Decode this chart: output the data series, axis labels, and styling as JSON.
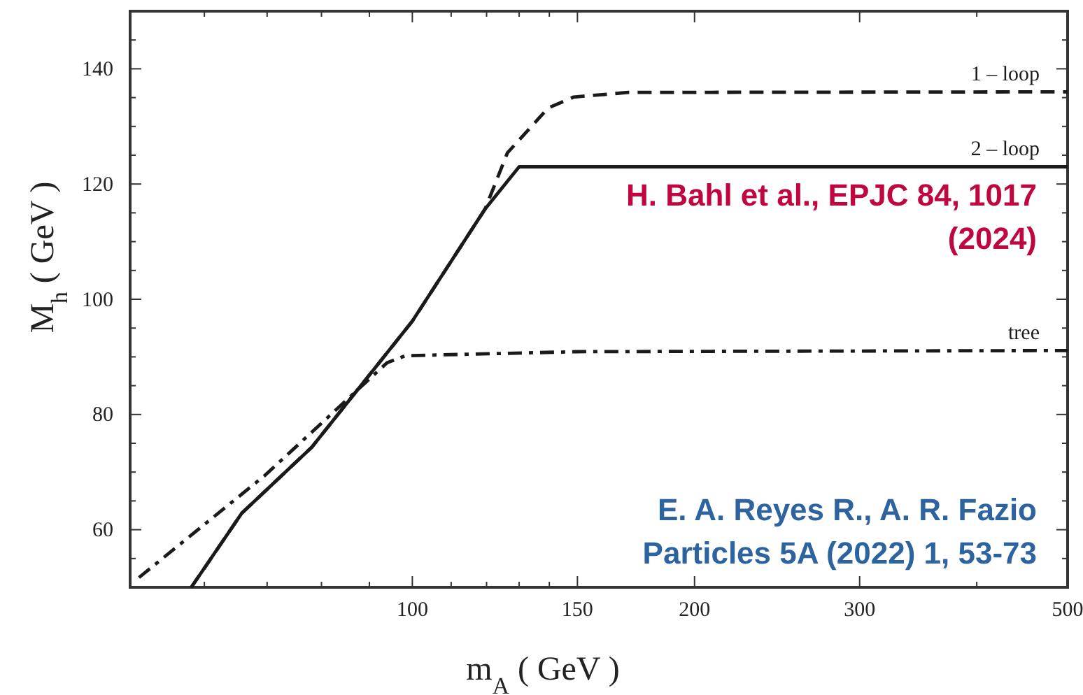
{
  "chart_data": {
    "type": "line",
    "xlabel": "m$_{A}$ ( GeV )",
    "ylabel": "M$_{h}$ ( GeV )",
    "log": "x",
    "xlim": [
      50,
      500
    ],
    "ylim": [
      50,
      150
    ],
    "xticks": [
      {
        "value": 60,
        "label": null
      },
      {
        "value": 70,
        "label": null
      },
      {
        "value": 80,
        "label": null
      },
      {
        "value": 90,
        "label": null
      },
      100,
      {
        "value": 110,
        "label": null
      },
      {
        "value": 120,
        "label": null
      },
      {
        "value": 130,
        "label": null
      },
      {
        "value": 140,
        "label": null
      },
      150,
      200,
      300,
      {
        "value": 400,
        "label": null
      },
      500
    ],
    "yticks": [
      {
        "value": 55,
        "label": null
      },
      60,
      {
        "value": 65,
        "label": null
      },
      {
        "value": 70,
        "label": null
      },
      {
        "value": 75,
        "label": null
      },
      80,
      {
        "value": 85,
        "label": null
      },
      {
        "value": 90,
        "label": null
      },
      {
        "value": 95,
        "label": null
      },
      100,
      {
        "value": 105,
        "label": null
      },
      {
        "value": 110,
        "label": null
      },
      {
        "value": 115,
        "label": null
      },
      120,
      {
        "value": 125,
        "label": null
      },
      {
        "value": 130,
        "label": null
      },
      {
        "value": 135,
        "label": null
      },
      140,
      {
        "value": 145,
        "label": null
      }
    ],
    "grid": false,
    "legend": "right",
    "series": [
      {
        "name": "1 – loop",
        "color": "#1a1a1a",
        "line_style": "dashed",
        "x": [
          58.1,
          65.8,
          78.1,
          100,
          119.6,
          126.3,
          139.6,
          148.6,
          170,
          500
        ],
        "values": [
          50,
          62.9,
          74.3,
          96.2,
          115.7,
          125.4,
          133.2,
          135.1,
          135.9,
          136
        ]
      },
      {
        "name": "2 – loop",
        "color": "#1a1a1a",
        "line_style": "solid",
        "x": [
          58.1,
          65.8,
          78.1,
          100,
          119.6,
          130,
          500
        ],
        "values": [
          50,
          62.9,
          74.3,
          96.2,
          115.7,
          123,
          123
        ]
      },
      {
        "name": "tree",
        "color": "#1a1a1a",
        "line_style": "dashdot",
        "x": [
          51.1,
          69.7,
          94.0,
          98.3,
          150,
          500
        ],
        "values": [
          51.7,
          69.5,
          89.0,
          90.2,
          90.9,
          91.1
        ]
      }
    ],
    "annotations": [
      "H. Bahl et al., EPJC 84, 1017 (2024)",
      "E. A. Reyes R., A. R. Fazio Particles 5A (2022) 1, 53-73"
    ]
  }
}
